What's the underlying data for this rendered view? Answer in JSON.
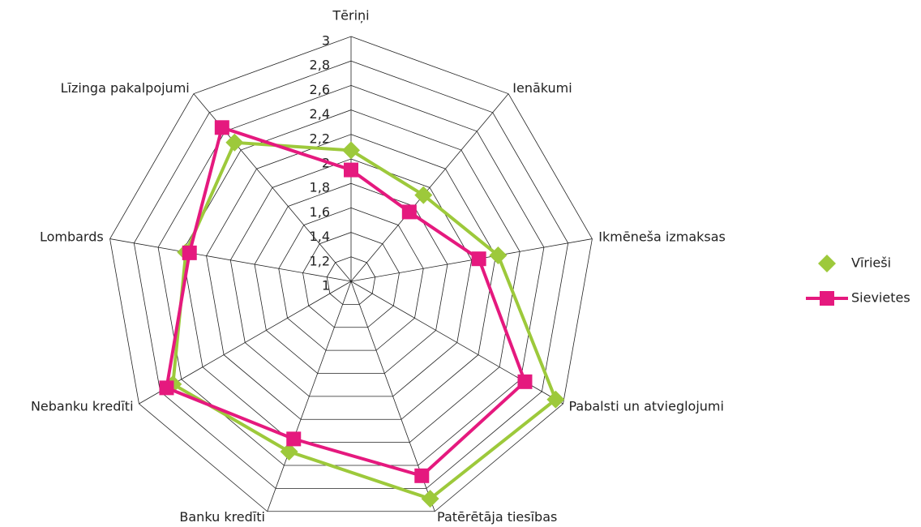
{
  "chart_data": {
    "type": "radar",
    "categories": [
      "Tēriņi",
      "Ienākumi",
      "Ikmēneša izmaksas",
      "Pabalsti un atvieglojumi",
      "Patērētāja tiesības",
      "Banku kredīti",
      "Nebanku kredīti",
      "Lombards",
      "Līzinga pakalpojumi"
    ],
    "series": [
      {
        "name": "Vīrieši",
        "color": "#9dc93b",
        "marker": "diamond",
        "values": [
          2.07,
          1.92,
          2.22,
          2.93,
          2.89,
          2.48,
          2.68,
          2.37,
          2.48
        ]
      },
      {
        "name": "Sievietes",
        "color": "#e5197e",
        "marker": "square",
        "values": [
          1.91,
          1.74,
          2.06,
          2.64,
          2.69,
          2.37,
          2.74,
          2.34,
          2.64
        ]
      }
    ],
    "ylim": [
      1,
      3
    ],
    "yticks": [
      1,
      {
        "value": 1.2,
        "label": "1,2"
      },
      {
        "value": 1.4,
        "label": "1,4"
      },
      {
        "value": 1.6,
        "label": "1,6"
      },
      {
        "value": 1.8,
        "label": "1,8"
      },
      2,
      {
        "value": 2.2,
        "label": "2,2"
      },
      {
        "value": 2.4,
        "label": "2,4"
      },
      {
        "value": 2.6,
        "label": "2,6"
      },
      {
        "value": 2.8,
        "label": "2,8"
      },
      3
    ],
    "grid": true,
    "legend": "right"
  }
}
